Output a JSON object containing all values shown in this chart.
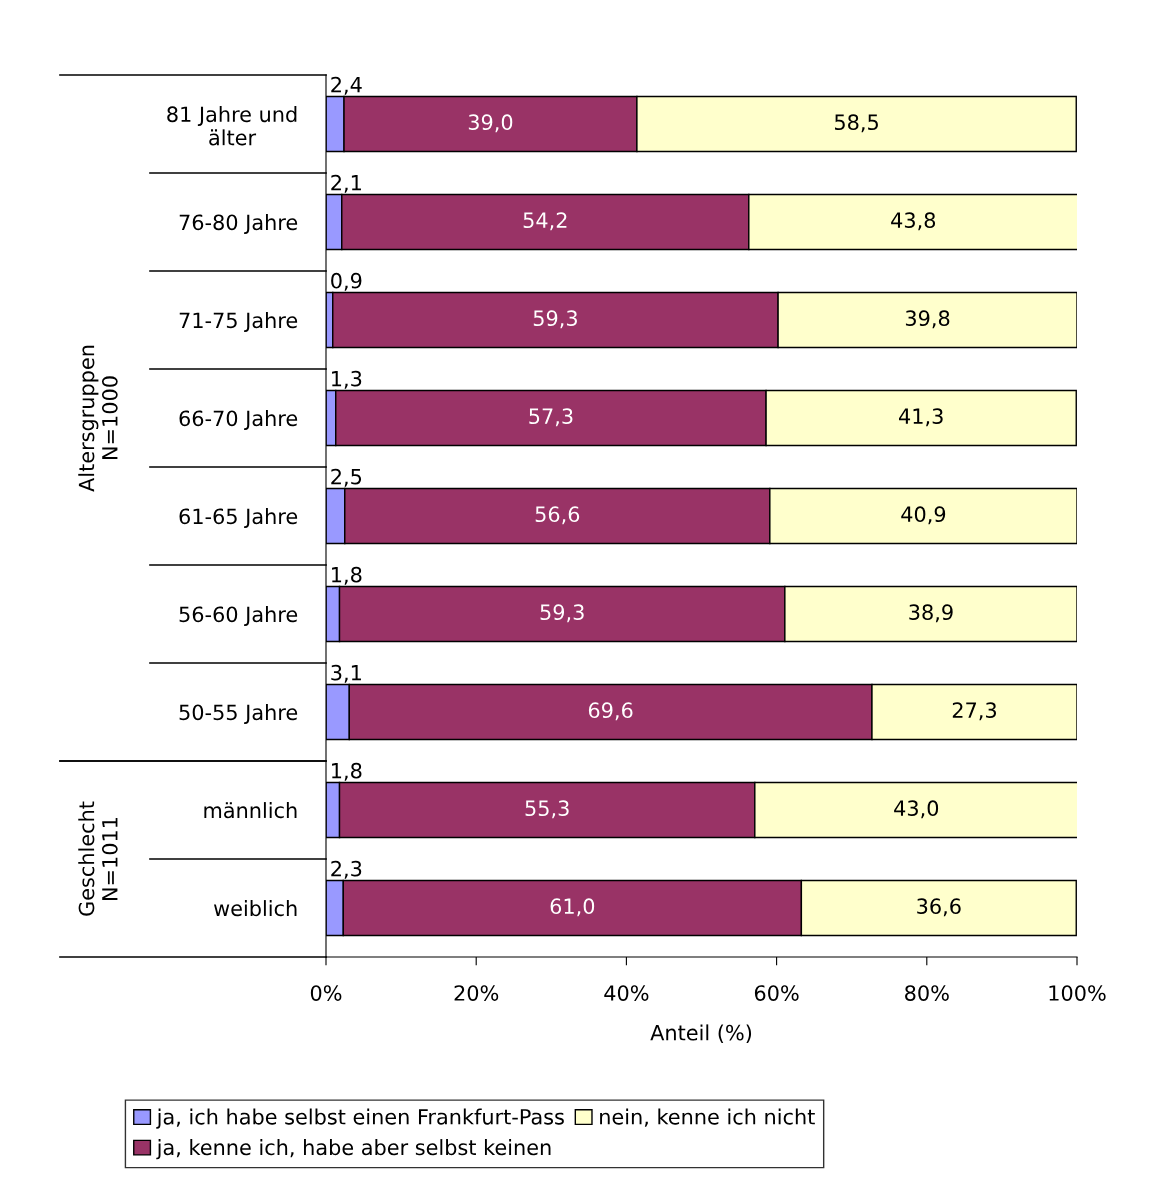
{
  "chart_data": {
    "type": "bar",
    "orientation": "horizontal",
    "stacked": true,
    "categories": [
      "81 Jahre und\nälter",
      "76-80 Jahre",
      "71-75 Jahre",
      "66-70 Jahre",
      "61-65 Jahre",
      "56-60 Jahre",
      "50-55 Jahre",
      "männlich",
      "weiblich"
    ],
    "series": [
      {
        "name": "ja, ich habe selbst einen Frankfurt-Pass",
        "color": "#9999ff",
        "values": [
          2.4,
          2.1,
          0.9,
          1.3,
          2.5,
          1.8,
          3.1,
          1.8,
          2.3
        ],
        "value_labels": [
          "2,4",
          "2,1",
          "0,9",
          "1,3",
          "2,5",
          "1,8",
          "3,1",
          "1,8",
          "2,3"
        ]
      },
      {
        "name": "ja, kenne ich, habe aber selbst keinen",
        "color": "#993366",
        "values": [
          39.0,
          54.2,
          59.3,
          57.3,
          56.6,
          59.3,
          69.6,
          55.3,
          61.0
        ],
        "value_labels": [
          "39,0",
          "54,2",
          "59,3",
          "57,3",
          "56,6",
          "59,3",
          "69,6",
          "55,3",
          "61,0"
        ]
      },
      {
        "name": "nein, kenne ich nicht",
        "color": "#ffffcc",
        "values": [
          58.5,
          43.8,
          39.8,
          41.3,
          40.9,
          38.9,
          27.3,
          43.0,
          36.6
        ],
        "value_labels": [
          "58,5",
          "43,8",
          "39,8",
          "41,3",
          "40,9",
          "38,9",
          "27,3",
          "43,0",
          "36,6"
        ]
      }
    ],
    "xlim": [
      0,
      100
    ],
    "xticks": [
      {
        "value": 0,
        "label": "0%"
      },
      {
        "value": 20,
        "label": "20%"
      },
      {
        "value": 40,
        "label": "40%"
      },
      {
        "value": 60,
        "label": "60%"
      },
      {
        "value": 80,
        "label": "80%"
      },
      {
        "value": 100,
        "label": "100%"
      }
    ],
    "xlabel": "Anteil (%)",
    "annotations": [
      "Altersgruppen\nN=1000",
      "Geschlecht\nN=1011"
    ],
    "grid": false,
    "legend": "bottom"
  }
}
